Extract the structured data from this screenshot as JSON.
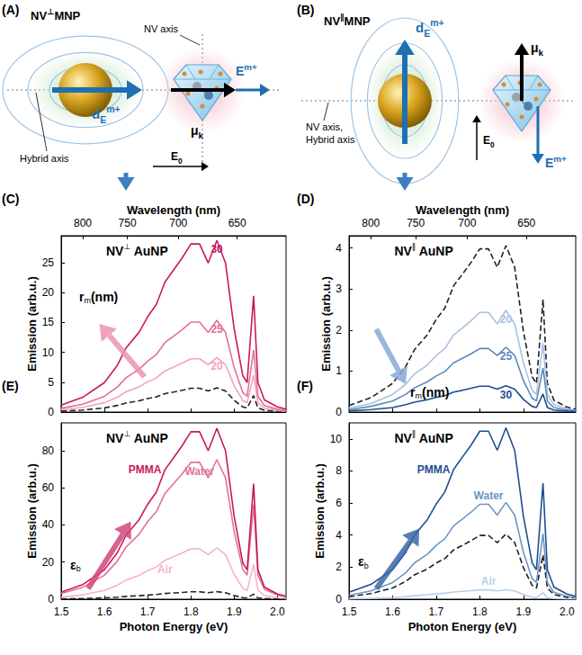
{
  "diagrams": [
    {
      "panel": "(A)",
      "title": {
        "text": "NV",
        "sup": "⊥",
        "suffix": "MNP"
      },
      "labels": {
        "nv_axis": {
          "text": "NV axis"
        },
        "field": {
          "text": "E",
          "sup": "m+"
        },
        "dipole": {
          "text": "μ",
          "sub": "k"
        },
        "plasmon": {
          "text": "d",
          "sub": "E",
          "sup": "m+"
        },
        "hybrid": {
          "text": "Hybrid axis"
        },
        "incident": {
          "text": "E",
          "sub": "0"
        }
      }
    },
    {
      "panel": "(B)",
      "title": {
        "text": "NV",
        "sup": "∥",
        "suffix": "MNP"
      },
      "labels": {
        "nv_axis": {
          "text": "NV axis,"
        },
        "hybrid": {
          "text": "Hybrid axis"
        },
        "plasmon": {
          "text": "d",
          "sub": "E",
          "sup": "m+"
        },
        "dipole": {
          "text": "μ",
          "sub": "k"
        },
        "incident": {
          "text": "E",
          "sub": "0"
        },
        "field": {
          "text": "E",
          "sup": "m+"
        }
      }
    }
  ],
  "chart_data": [
    {
      "type": "line",
      "panel_label": "(C)",
      "title": {
        "text": "NV",
        "sup": "⊥",
        "suffix": " AuNP"
      },
      "x2_label": "Wavelength (nm)",
      "y_label": "Emission (arb.u.)",
      "annotations": [
        {
          "text": "r",
          "sub": "m",
          "suffix": "(nm)"
        }
      ],
      "xlim": [
        1.5,
        2.02
      ],
      "xticks": [
        1.5,
        1.6,
        1.7,
        1.8,
        1.9,
        {
          "value": 2,
          "label": "2.0"
        }
      ],
      "x2ticks": [
        {
          "value": 1.55,
          "label": "800"
        },
        {
          "value": 1.653,
          "label": "750"
        },
        {
          "value": 1.771,
          "label": "700"
        },
        {
          "value": 1.907,
          "label": "650"
        }
      ],
      "ylim": [
        0,
        29.5
      ],
      "yticks": [
        0,
        5,
        10,
        15,
        20,
        25
      ],
      "tick_labels": "y",
      "grid": false,
      "x": [
        1.5,
        1.55,
        1.6,
        1.63,
        1.65,
        1.68,
        1.7,
        1.72,
        1.74,
        1.76,
        1.78,
        1.8,
        1.82,
        1.84,
        1.86,
        1.88,
        1.9,
        1.92,
        1.93,
        1.945,
        1.955,
        1.97,
        2.0,
        2.02
      ],
      "series": [
        {
          "color": "#222222",
          "line_style": "dashed",
          "values": [
            0.16,
            0.35,
            0.7,
            1.11,
            1.52,
            1.89,
            2.26,
            2.54,
            3.08,
            3.36,
            3.65,
            3.98,
            3.98,
            3.53,
            4.06,
            3.53,
            1.97,
            0.86,
            0.7,
            2.75,
            0.7,
            0.29,
            0.12,
            0.07
          ]
        },
        {
          "name": "20",
          "color": "#f4a3bd",
          "values": [
            0.37,
            0.78,
            1.56,
            2.48,
            3.4,
            4.23,
            5.06,
            5.7,
            6.9,
            7.54,
            8.19,
            8.92,
            8.92,
            7.91,
            9.11,
            7.91,
            4.42,
            1.93,
            1.56,
            6.16,
            1.56,
            0.64,
            0.28,
            0.16
          ]
        },
        {
          "name": "25",
          "color": "#e46f97",
          "values": [
            0.62,
            1.32,
            2.64,
            4.19,
            5.74,
            7.13,
            8.53,
            9.61,
            11.63,
            12.71,
            13.8,
            15.04,
            15.04,
            13.33,
            15.35,
            13.33,
            7.44,
            3.26,
            2.64,
            10.39,
            2.64,
            1.09,
            0.47,
            0.26
          ]
        },
        {
          "name": "30",
          "color": "#c8195d",
          "values": [
            1.16,
            2.47,
            4.93,
            7.83,
            10.73,
            13.34,
            15.95,
            17.98,
            21.75,
            23.78,
            25.81,
            28.13,
            28.13,
            24.94,
            28.71,
            24.94,
            13.92,
            6.09,
            4.93,
            19.43,
            4.93,
            2.03,
            0.87,
            0.49
          ]
        }
      ]
    },
    {
      "type": "line",
      "panel_label": "(D)",
      "title": {
        "text": "NV",
        "sup": "∥",
        "suffix": " AuNP"
      },
      "x2_label": "Wavelength (nm)",
      "y_label": "Emission (arb.u.)",
      "annotations": [
        {
          "text": "r",
          "sub": "m",
          "suffix": "(nm)"
        }
      ],
      "xlim": [
        1.5,
        2.02
      ],
      "xticks": [
        1.5,
        1.6,
        1.7,
        1.8,
        1.9,
        {
          "value": 2,
          "label": "2.0"
        }
      ],
      "x2ticks": [
        {
          "value": 1.55,
          "label": "800"
        },
        {
          "value": 1.653,
          "label": "750"
        },
        {
          "value": 1.771,
          "label": "700"
        },
        {
          "value": 1.907,
          "label": "650"
        }
      ],
      "ylim": [
        0,
        4.3
      ],
      "yticks": [
        0,
        1,
        2,
        3,
        4
      ],
      "tick_labels": "y",
      "grid": false,
      "x": [
        1.5,
        1.55,
        1.6,
        1.63,
        1.65,
        1.68,
        1.7,
        1.72,
        1.74,
        1.76,
        1.78,
        1.8,
        1.82,
        1.84,
        1.86,
        1.88,
        1.9,
        1.92,
        1.93,
        1.945,
        1.955,
        1.97,
        2.0,
        2.02
      ],
      "series": [
        {
          "color": "#222222",
          "line_style": "dashed",
          "values": [
            0.16,
            0.35,
            0.7,
            1.11,
            1.52,
            1.89,
            2.26,
            2.54,
            3.08,
            3.36,
            3.65,
            3.98,
            3.98,
            3.53,
            4.06,
            3.53,
            1.97,
            0.86,
            0.7,
            2.75,
            0.7,
            0.29,
            0.12,
            0.07
          ]
        },
        {
          "name": "20",
          "color": "#a8c3e3",
          "values": [
            0.1,
            0.21,
            0.43,
            0.68,
            0.93,
            1.15,
            1.38,
            1.55,
            1.88,
            2.05,
            2.23,
            2.43,
            2.43,
            2.15,
            2.48,
            2.15,
            1.2,
            0.53,
            0.43,
            1.68,
            0.43,
            0.18,
            0.08,
            0.04
          ]
        },
        {
          "name": "25",
          "color": "#5c89bd",
          "values": [
            0.06,
            0.14,
            0.27,
            0.43,
            0.59,
            0.74,
            0.88,
            0.99,
            1.2,
            1.31,
            1.42,
            1.55,
            1.55,
            1.38,
            1.58,
            1.38,
            0.77,
            0.34,
            0.27,
            1.07,
            0.27,
            0.11,
            0.05,
            0.03
          ]
        },
        {
          "name": "30",
          "color": "#1c4f8f",
          "values": [
            0.03,
            0.06,
            0.11,
            0.18,
            0.24,
            0.3,
            0.36,
            0.4,
            0.49,
            0.53,
            0.58,
            0.63,
            0.63,
            0.56,
            0.64,
            0.56,
            0.31,
            0.14,
            0.11,
            0.44,
            0.11,
            0.05,
            0.02,
            0.01
          ]
        }
      ]
    },
    {
      "type": "line",
      "panel_label": "(E)",
      "title": {
        "text": "NV",
        "sup": "⊥",
        "suffix": " AuNP"
      },
      "x_label": "Photon Energy (eV)",
      "y_label": "Emission (arb.u.)",
      "annotations": [
        {
          "text": "ε",
          "sub": "b"
        }
      ],
      "xlim": [
        1.5,
        2.02
      ],
      "xticks": [
        1.5,
        1.6,
        1.7,
        1.8,
        1.9,
        {
          "value": 2,
          "label": "2.0"
        }
      ],
      "ylim": [
        0,
        95
      ],
      "yticks": [
        0,
        20,
        40,
        60,
        80
      ],
      "grid": false,
      "x": [
        1.5,
        1.55,
        1.6,
        1.63,
        1.65,
        1.68,
        1.7,
        1.72,
        1.74,
        1.76,
        1.78,
        1.8,
        1.82,
        1.84,
        1.86,
        1.88,
        1.9,
        1.92,
        1.93,
        1.945,
        1.955,
        1.97,
        2.0,
        2.02
      ],
      "series": [
        {
          "color": "#222222",
          "line_style": "dashed",
          "values": [
            0.16,
            0.35,
            0.7,
            1.11,
            1.52,
            1.89,
            2.26,
            2.54,
            3.08,
            3.36,
            3.65,
            3.98,
            3.98,
            3.53,
            4.06,
            3.53,
            1.97,
            0.86,
            0.7,
            2.75,
            0.7,
            0.29,
            0.12,
            0.07
          ]
        },
        {
          "name": "Air",
          "color": "#f4b4c8",
          "values": [
            1.12,
            2.38,
            4.76,
            7.56,
            10.36,
            12.88,
            15.4,
            17.36,
            21,
            22.96,
            24.92,
            27.16,
            27.16,
            24.08,
            27.72,
            24.08,
            13.44,
            5.88,
            4.76,
            18.76,
            4.76,
            1.96,
            0.84,
            0.48
          ]
        },
        {
          "name": "Water",
          "color": "#e3719a",
          "values": [
            3.04,
            6.46,
            12.92,
            20.52,
            28.12,
            34.96,
            41.8,
            47.12,
            57,
            62.32,
            67.64,
            73.72,
            73.72,
            65.36,
            75.24,
            65.36,
            36.48,
            15.96,
            12.92,
            50.92,
            12.92,
            5.32,
            2.28,
            1.29
          ]
        },
        {
          "name": "PMMA",
          "color": "#c8195d",
          "values": [
            3.72,
            7.91,
            15.81,
            25.11,
            34.41,
            42.78,
            51.15,
            57.66,
            69.75,
            76.26,
            82.77,
            90.21,
            90.21,
            79.98,
            92.07,
            79.98,
            44.64,
            19.53,
            15.81,
            62.31,
            15.81,
            6.51,
            2.79,
            1.58
          ]
        }
      ]
    },
    {
      "type": "line",
      "panel_label": "(F)",
      "title": {
        "text": "NV",
        "sup": "∥",
        "suffix": " AuNP"
      },
      "x_label": "Photon Energy (eV)",
      "y_label": "Emission (arb.u.)",
      "annotations": [
        {
          "text": "ε",
          "sub": "b"
        }
      ],
      "xlim": [
        1.5,
        2.02
      ],
      "xticks": [
        1.5,
        1.6,
        1.7,
        1.8,
        1.9,
        {
          "value": 2,
          "label": "2.0"
        }
      ],
      "ylim": [
        0,
        11
      ],
      "yticks": [
        0,
        2,
        4,
        6,
        8,
        10
      ],
      "grid": false,
      "x": [
        1.5,
        1.55,
        1.6,
        1.63,
        1.65,
        1.68,
        1.7,
        1.72,
        1.74,
        1.76,
        1.78,
        1.8,
        1.82,
        1.84,
        1.86,
        1.88,
        1.9,
        1.92,
        1.93,
        1.945,
        1.955,
        1.97,
        2.0,
        2.02
      ],
      "series": [
        {
          "color": "#222222",
          "line_style": "dashed",
          "values": [
            0.16,
            0.35,
            0.7,
            1.11,
            1.52,
            1.89,
            2.26,
            2.54,
            3.08,
            3.36,
            3.65,
            3.98,
            3.98,
            3.53,
            4.06,
            3.53,
            1.97,
            0.86,
            0.7,
            2.75,
            0.7,
            0.29,
            0.12,
            0.07
          ]
        },
        {
          "name": "Air",
          "color": "#b8cfe8",
          "values": [
            0.02,
            0.05,
            0.1,
            0.16,
            0.22,
            0.28,
            0.33,
            0.37,
            0.45,
            0.49,
            0.53,
            0.58,
            0.58,
            0.52,
            0.59,
            0.52,
            0.29,
            0.13,
            0.1,
            0.4,
            0.1,
            0.04,
            0.02,
            0.01
          ]
        },
        {
          "name": "Water",
          "color": "#6c96c6",
          "values": [
            0.24,
            0.52,
            1.04,
            1.65,
            2.26,
            2.81,
            3.36,
            3.78,
            4.58,
            5.0,
            5.43,
            5.92,
            5.92,
            5.25,
            6.04,
            5.25,
            2.93,
            1.28,
            1.04,
            4.09,
            1.04,
            0.43,
            0.18,
            0.1
          ]
        },
        {
          "name": "PMMA",
          "color": "#1c4f8f",
          "values": [
            0.43,
            0.92,
            1.84,
            2.92,
            4.0,
            4.97,
            5.94,
            6.7,
            8.1,
            8.86,
            9.61,
            10.48,
            10.48,
            9.29,
            10.69,
            9.29,
            5.18,
            2.27,
            1.84,
            7.24,
            1.84,
            0.76,
            0.32,
            0.18
          ]
        }
      ]
    }
  ]
}
